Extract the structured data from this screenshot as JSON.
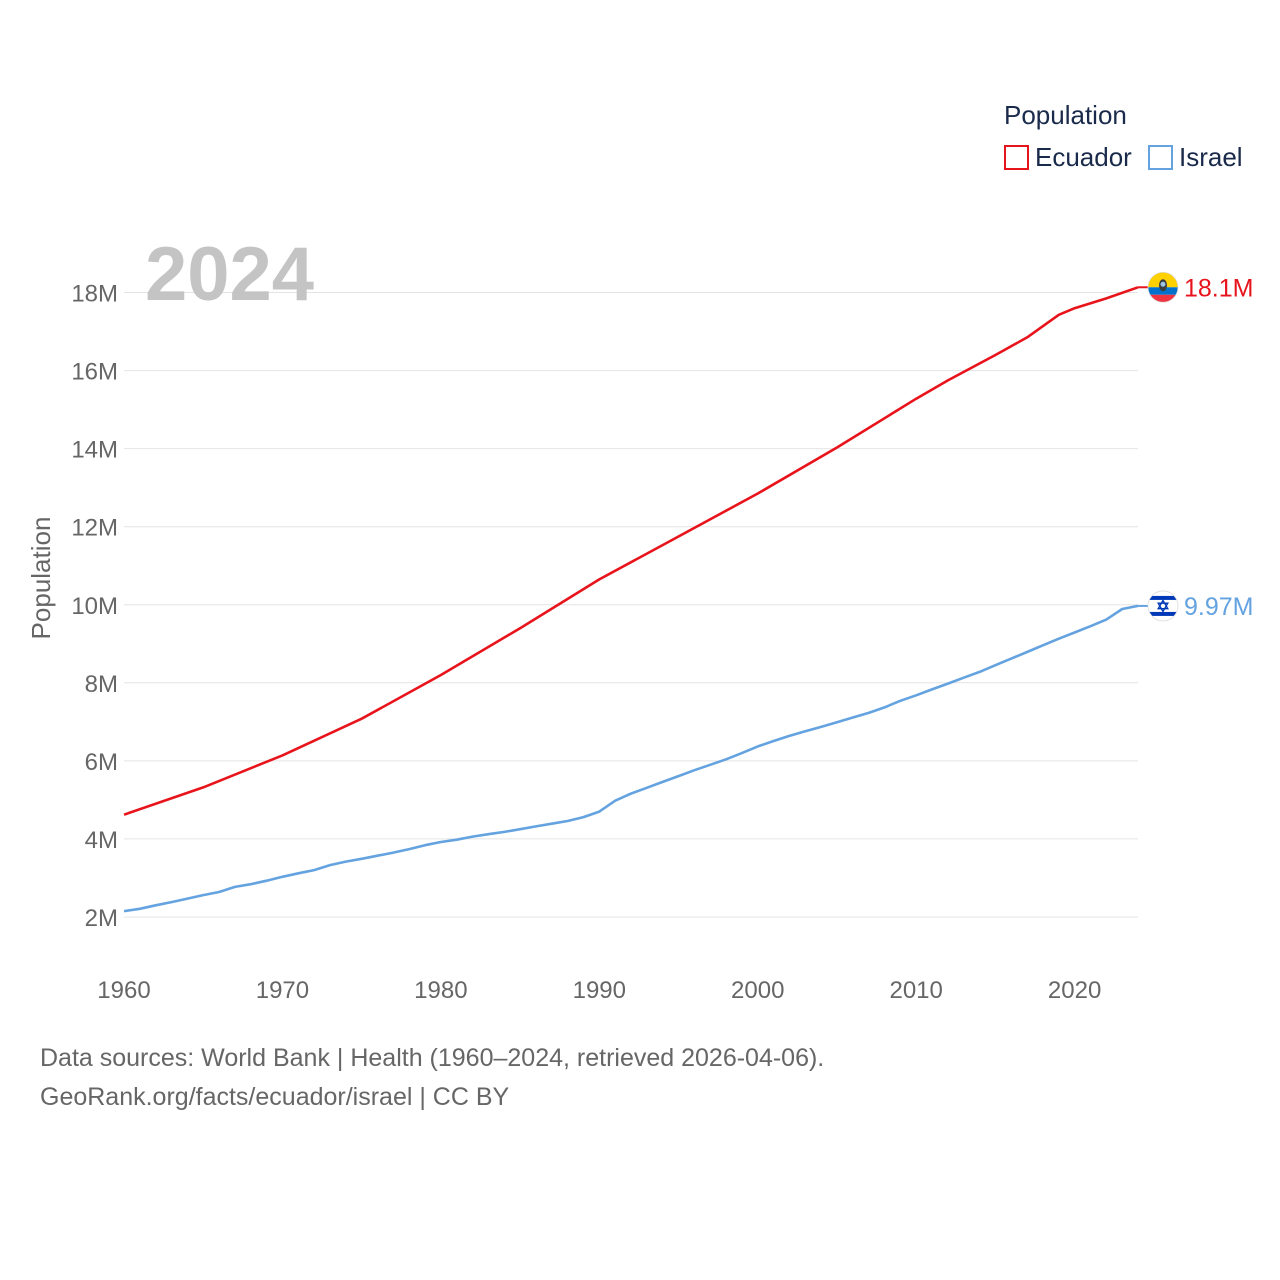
{
  "chart_data": {
    "type": "line",
    "current_year_label": "2024",
    "ylabel": "Population",
    "ylim": [
      1000000,
      19500000
    ],
    "xlim": [
      1960,
      2024
    ],
    "y_ticks": [
      {
        "value": 2000000,
        "label": "2M"
      },
      {
        "value": 4000000,
        "label": "4M"
      },
      {
        "value": 6000000,
        "label": "6M"
      },
      {
        "value": 8000000,
        "label": "8M"
      },
      {
        "value": 10000000,
        "label": "10M"
      },
      {
        "value": 12000000,
        "label": "12M"
      },
      {
        "value": 14000000,
        "label": "14M"
      },
      {
        "value": 16000000,
        "label": "16M"
      },
      {
        "value": 18000000,
        "label": "18M"
      }
    ],
    "x_ticks": [
      {
        "value": 1960,
        "label": "1960"
      },
      {
        "value": 1970,
        "label": "1970"
      },
      {
        "value": 1980,
        "label": "1980"
      },
      {
        "value": 1990,
        "label": "1990"
      },
      {
        "value": 2000,
        "label": "2000"
      },
      {
        "value": 2010,
        "label": "2010"
      },
      {
        "value": 2020,
        "label": "2020"
      }
    ],
    "legend": {
      "title": "Population",
      "position": "top-right"
    },
    "series": [
      {
        "name": "Ecuador",
        "color": "#e8141c",
        "end_label": "18.1M",
        "flag_icon": "ecuador-flag-icon",
        "points": [
          [
            1960,
            4620000
          ],
          [
            1965,
            5320000
          ],
          [
            1970,
            6140000
          ],
          [
            1975,
            7080000
          ],
          [
            1980,
            8200000
          ],
          [
            1985,
            9400000
          ],
          [
            1990,
            10650000
          ],
          [
            1995,
            11750000
          ],
          [
            2000,
            12850000
          ],
          [
            2005,
            14030000
          ],
          [
            2010,
            15280000
          ],
          [
            2012,
            15750000
          ],
          [
            2015,
            16400000
          ],
          [
            2017,
            16850000
          ],
          [
            2019,
            17430000
          ],
          [
            2020,
            17600000
          ],
          [
            2022,
            17850000
          ],
          [
            2024,
            18135000
          ]
        ]
      },
      {
        "name": "Israel",
        "color": "#64a3e0",
        "end_label": "9.97M",
        "flag_icon": "israel-flag-icon",
        "points": [
          [
            1960,
            2150000
          ],
          [
            1961,
            2210000
          ],
          [
            1962,
            2300000
          ],
          [
            1963,
            2380000
          ],
          [
            1964,
            2470000
          ],
          [
            1965,
            2560000
          ],
          [
            1966,
            2640000
          ],
          [
            1967,
            2770000
          ],
          [
            1968,
            2840000
          ],
          [
            1969,
            2930000
          ],
          [
            1970,
            3030000
          ],
          [
            1971,
            3120000
          ],
          [
            1972,
            3200000
          ],
          [
            1973,
            3330000
          ],
          [
            1974,
            3420000
          ],
          [
            1975,
            3490000
          ],
          [
            1976,
            3570000
          ],
          [
            1977,
            3650000
          ],
          [
            1978,
            3740000
          ],
          [
            1979,
            3840000
          ],
          [
            1980,
            3920000
          ],
          [
            1981,
            3980000
          ],
          [
            1982,
            4060000
          ],
          [
            1983,
            4120000
          ],
          [
            1984,
            4180000
          ],
          [
            1985,
            4250000
          ],
          [
            1986,
            4320000
          ],
          [
            1987,
            4390000
          ],
          [
            1988,
            4460000
          ],
          [
            1989,
            4560000
          ],
          [
            1990,
            4700000
          ],
          [
            1991,
            4980000
          ],
          [
            1992,
            5160000
          ],
          [
            1993,
            5310000
          ],
          [
            1994,
            5460000
          ],
          [
            1995,
            5610000
          ],
          [
            1996,
            5760000
          ],
          [
            1997,
            5900000
          ],
          [
            1998,
            6040000
          ],
          [
            1999,
            6200000
          ],
          [
            2000,
            6370000
          ],
          [
            2001,
            6510000
          ],
          [
            2002,
            6640000
          ],
          [
            2003,
            6760000
          ],
          [
            2004,
            6870000
          ],
          [
            2005,
            6990000
          ],
          [
            2006,
            7110000
          ],
          [
            2007,
            7230000
          ],
          [
            2008,
            7370000
          ],
          [
            2009,
            7540000
          ],
          [
            2010,
            7680000
          ],
          [
            2011,
            7830000
          ],
          [
            2012,
            7980000
          ],
          [
            2013,
            8130000
          ],
          [
            2014,
            8280000
          ],
          [
            2015,
            8450000
          ],
          [
            2016,
            8620000
          ],
          [
            2017,
            8790000
          ],
          [
            2018,
            8960000
          ],
          [
            2019,
            9130000
          ],
          [
            2020,
            9290000
          ],
          [
            2021,
            9450000
          ],
          [
            2022,
            9620000
          ],
          [
            2023,
            9890000
          ],
          [
            2024,
            9970000
          ]
        ]
      }
    ]
  },
  "footer": {
    "line1": "Data sources: World Bank | Health (1960–2024, retrieved 2026-04-06).",
    "line2": "GeoRank.org/facts/ecuador/israel | CC BY"
  }
}
